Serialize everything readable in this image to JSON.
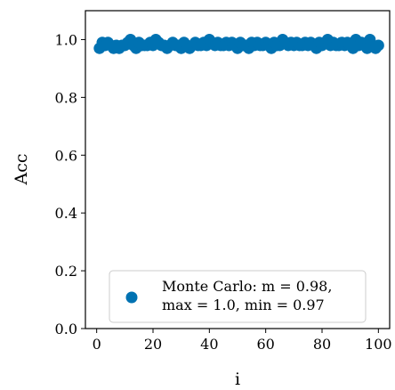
{
  "chart_data": {
    "type": "scatter",
    "xlabel": "i",
    "ylabel": "Acc",
    "xlim": [
      -4,
      104
    ],
    "ylim": [
      0.0,
      1.1
    ],
    "xticks": [
      0,
      20,
      40,
      60,
      80,
      100
    ],
    "yticks": [
      0.0,
      0.2,
      0.4,
      0.6,
      0.8,
      1.0
    ],
    "x_tick_labels": [
      "0",
      "20",
      "40",
      "60",
      "80",
      "100"
    ],
    "y_tick_labels": [
      "0.0",
      "0.2",
      "0.4",
      "0.6",
      "0.8",
      "1.0"
    ],
    "grid": false,
    "legend_position": "lower-right",
    "series": [
      {
        "name": "Monte Carlo: m = 0.98, max = 1.0, min = 0.97",
        "legend_lines": [
          "Monte Carlo: m = 0.98,",
          "max = 1.0, min = 0.97"
        ],
        "color": "#0072b2",
        "x": [
          1,
          2,
          3,
          4,
          5,
          6,
          7,
          8,
          9,
          10,
          11,
          12,
          13,
          14,
          15,
          16,
          17,
          18,
          19,
          20,
          21,
          22,
          23,
          24,
          25,
          26,
          27,
          28,
          29,
          30,
          31,
          32,
          33,
          34,
          35,
          36,
          37,
          38,
          39,
          40,
          41,
          42,
          43,
          44,
          45,
          46,
          47,
          48,
          49,
          50,
          51,
          52,
          53,
          54,
          55,
          56,
          57,
          58,
          59,
          60,
          61,
          62,
          63,
          64,
          65,
          66,
          67,
          68,
          69,
          70,
          71,
          72,
          73,
          74,
          75,
          76,
          77,
          78,
          79,
          80,
          81,
          82,
          83,
          84,
          85,
          86,
          87,
          88,
          89,
          90,
          91,
          92,
          93,
          94,
          95,
          96,
          97,
          98,
          99,
          100
        ],
        "y": [
          0.97,
          0.99,
          0.98,
          0.99,
          0.98,
          0.97,
          0.98,
          0.97,
          0.98,
          0.98,
          0.99,
          1.0,
          0.98,
          0.97,
          0.99,
          0.98,
          0.98,
          0.98,
          0.99,
          0.98,
          1.0,
          0.99,
          0.98,
          0.98,
          0.97,
          0.98,
          0.99,
          0.98,
          0.98,
          0.97,
          0.99,
          0.98,
          0.97,
          0.98,
          0.99,
          0.98,
          0.98,
          0.99,
          0.98,
          1.0,
          0.99,
          0.98,
          0.99,
          0.98,
          0.98,
          0.99,
          0.98,
          0.99,
          0.98,
          0.97,
          0.99,
          0.98,
          0.98,
          0.97,
          0.99,
          0.98,
          0.99,
          0.98,
          0.98,
          0.99,
          0.98,
          0.97,
          0.99,
          0.98,
          0.98,
          1.0,
          0.99,
          0.98,
          0.99,
          0.98,
          0.99,
          0.98,
          0.98,
          0.99,
          0.98,
          0.99,
          0.98,
          0.97,
          0.99,
          0.98,
          0.99,
          1.0,
          0.98,
          0.99,
          0.98,
          0.98,
          0.99,
          0.98,
          0.99,
          0.98,
          0.97,
          1.0,
          0.98,
          0.99,
          0.98,
          0.97,
          1.0,
          0.98,
          0.97,
          0.98
        ]
      }
    ]
  }
}
